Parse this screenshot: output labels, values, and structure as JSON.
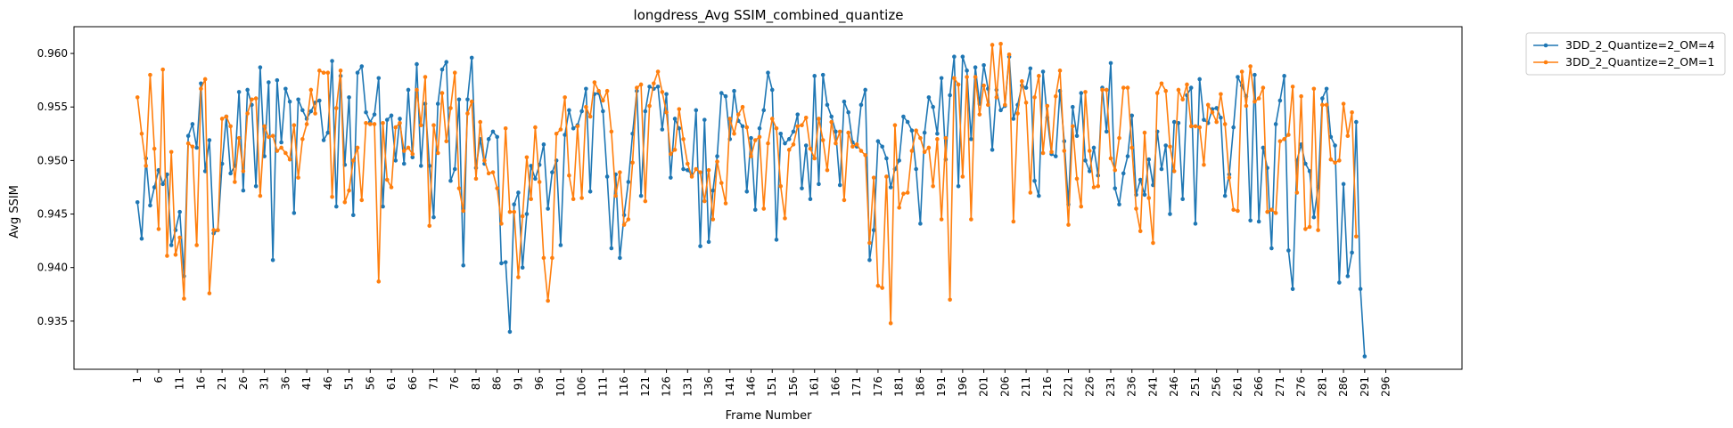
{
  "chart_data": {
    "type": "line",
    "title": "longdress_Avg SSIM_combined_quantize",
    "xlabel": "Frame Number",
    "ylabel": "Avg SSIM",
    "xlim": [
      -14,
      314
    ],
    "ylim": [
      0.9305,
      0.9625
    ],
    "x_ticks": [
      1,
      6,
      11,
      16,
      21,
      26,
      31,
      36,
      41,
      46,
      51,
      56,
      61,
      66,
      71,
      76,
      81,
      86,
      91,
      96,
      101,
      106,
      111,
      116,
      121,
      126,
      131,
      136,
      141,
      146,
      151,
      156,
      161,
      166,
      171,
      176,
      181,
      186,
      191,
      196,
      201,
      206,
      211,
      216,
      221,
      226,
      231,
      236,
      241,
      246,
      251,
      256,
      261,
      266,
      271,
      276,
      281,
      286,
      291,
      296
    ],
    "y_ticks": [
      0.935,
      0.94,
      0.945,
      0.95,
      0.955,
      0.96
    ],
    "y_tick_labels": [
      "0.935",
      "0.940",
      "0.945",
      "0.950",
      "0.955",
      "0.960"
    ],
    "grid": false,
    "legend_position": "outside-top-right",
    "x_start": 1,
    "series": [
      {
        "name": "3DD_2_Quantize=2_OM=4",
        "color": "#1f77b4",
        "values": [
          0.9461,
          0.9427,
          0.9502,
          0.9458,
          0.9475,
          0.9491,
          0.9478,
          0.9487,
          0.9421,
          0.9435,
          0.9452,
          0.9392,
          0.9523,
          0.9534,
          0.9512,
          0.9572,
          0.949,
          0.9519,
          0.9432,
          0.9435,
          0.9497,
          0.9541,
          0.9488,
          0.9495,
          0.9564,
          0.9472,
          0.9566,
          0.9552,
          0.9476,
          0.9587,
          0.9504,
          0.9573,
          0.9407,
          0.9575,
          0.9517,
          0.9567,
          0.9555,
          0.9451,
          0.9557,
          0.9547,
          0.9539,
          0.9546,
          0.9554,
          0.9556,
          0.9519,
          0.9526,
          0.9593,
          0.9457,
          0.9579,
          0.9496,
          0.9559,
          0.9449,
          0.9582,
          0.9588,
          0.9545,
          0.9536,
          0.9543,
          0.9577,
          0.9457,
          0.9538,
          0.9542,
          0.95,
          0.9539,
          0.9497,
          0.9566,
          0.9503,
          0.959,
          0.9495,
          0.9553,
          0.9495,
          0.9447,
          0.9553,
          0.9585,
          0.9592,
          0.9481,
          0.9492,
          0.9557,
          0.9402,
          0.9557,
          0.9596,
          0.9493,
          0.952,
          0.9497,
          0.952,
          0.9527,
          0.9522,
          0.9404,
          0.9405,
          0.934,
          0.9459,
          0.947,
          0.94,
          0.945,
          0.9495,
          0.9483,
          0.9496,
          0.9515,
          0.9455,
          0.9489,
          0.95,
          0.9421,
          0.9524,
          0.9547,
          0.953,
          0.9533,
          0.9546,
          0.9567,
          0.9471,
          0.9562,
          0.9563,
          0.9546,
          0.9485,
          0.9418,
          0.9487,
          0.9409,
          0.9449,
          0.948,
          0.9525,
          0.9565,
          0.9467,
          0.9546,
          0.9569,
          0.9567,
          0.9569,
          0.9529,
          0.9562,
          0.9484,
          0.9539,
          0.953,
          0.9492,
          0.9491,
          0.9487,
          0.9547,
          0.942,
          0.9538,
          0.9424,
          0.9472,
          0.9504,
          0.9563,
          0.956,
          0.952,
          0.9565,
          0.9537,
          0.9532,
          0.9471,
          0.9521,
          0.9454,
          0.953,
          0.9547,
          0.9582,
          0.9566,
          0.9426,
          0.9525,
          0.9516,
          0.952,
          0.9527,
          0.9543,
          0.9474,
          0.9514,
          0.9464,
          0.9579,
          0.9478,
          0.958,
          0.9552,
          0.9541,
          0.9527,
          0.9477,
          0.9555,
          0.9545,
          0.9517,
          0.9513,
          0.9552,
          0.9566,
          0.9407,
          0.9435,
          0.9518,
          0.9513,
          0.9502,
          0.9475,
          0.9492,
          0.95,
          0.9541,
          0.9536,
          0.9528,
          0.9492,
          0.9441,
          0.9526,
          0.9559,
          0.955,
          0.9525,
          0.9577,
          0.9501,
          0.9561,
          0.9597,
          0.9476,
          0.9597,
          0.9584,
          0.952,
          0.9587,
          0.9553,
          0.9589,
          0.9567,
          0.951,
          0.9566,
          0.9547,
          0.9551,
          0.9597,
          0.9539,
          0.9552,
          0.957,
          0.9568,
          0.9586,
          0.9481,
          0.9467,
          0.9583,
          0.954,
          0.9506,
          0.9504,
          0.9565,
          0.9518,
          0.9459,
          0.955,
          0.9523,
          0.9563,
          0.95,
          0.949,
          0.9512,
          0.9486,
          0.9568,
          0.9527,
          0.9591,
          0.9474,
          0.9459,
          0.9488,
          0.9504,
          0.9542,
          0.9468,
          0.9482,
          0.9468,
          0.9501,
          0.9477,
          0.9527,
          0.9492,
          0.9514,
          0.945,
          0.9536,
          0.9535,
          0.9464,
          0.9561,
          0.9568,
          0.9441,
          0.9576,
          0.9538,
          0.9535,
          0.9548,
          0.9549,
          0.954,
          0.9467,
          0.9487,
          0.9531,
          0.9578,
          0.957,
          0.956,
          0.9444,
          0.958,
          0.9443,
          0.9512,
          0.9493,
          0.9418,
          0.9534,
          0.9556,
          0.9579,
          0.9416,
          0.938,
          0.95,
          0.9515,
          0.9497,
          0.949,
          0.9447,
          0.9475,
          0.9558,
          0.9567,
          0.9522,
          0.9514,
          0.9386,
          0.9478,
          0.9392,
          0.9414,
          0.9536,
          0.938,
          0.9317
        ]
      },
      {
        "name": "3DD_2_Quantize=2_OM=1",
        "color": "#ff7f0e",
        "values": [
          0.9559,
          0.9525,
          0.9495,
          0.958,
          0.9511,
          0.9436,
          0.9585,
          0.9411,
          0.9508,
          0.9412,
          0.9428,
          0.9371,
          0.9516,
          0.9513,
          0.9421,
          0.9567,
          0.9576,
          0.9376,
          0.9435,
          0.9435,
          0.9539,
          0.9541,
          0.9532,
          0.948,
          0.9521,
          0.949,
          0.9544,
          0.9557,
          0.9558,
          0.9467,
          0.9532,
          0.9522,
          0.9523,
          0.9509,
          0.9512,
          0.9507,
          0.9501,
          0.9533,
          0.9484,
          0.952,
          0.9534,
          0.9566,
          0.9544,
          0.9584,
          0.9582,
          0.9582,
          0.9466,
          0.9549,
          0.9584,
          0.9461,
          0.9472,
          0.95,
          0.9512,
          0.9463,
          0.9535,
          0.9534,
          0.9534,
          0.9387,
          0.9535,
          0.9482,
          0.9475,
          0.9531,
          0.9535,
          0.9509,
          0.9512,
          0.9506,
          0.9566,
          0.9533,
          0.9578,
          0.9439,
          0.9533,
          0.9507,
          0.9563,
          0.9518,
          0.9549,
          0.9582,
          0.9474,
          0.9453,
          0.9544,
          0.9555,
          0.9483,
          0.9536,
          0.95,
          0.9488,
          0.9489,
          0.9474,
          0.9441,
          0.953,
          0.9452,
          0.9452,
          0.9391,
          0.9448,
          0.9503,
          0.9464,
          0.9531,
          0.948,
          0.9409,
          0.9369,
          0.9409,
          0.9525,
          0.9529,
          0.9559,
          0.9486,
          0.9464,
          0.9532,
          0.9465,
          0.955,
          0.9541,
          0.9573,
          0.9565,
          0.9556,
          0.9565,
          0.9527,
          0.9467,
          0.9489,
          0.944,
          0.9445,
          0.9498,
          0.9568,
          0.9571,
          0.9462,
          0.9551,
          0.9572,
          0.9583,
          0.9564,
          0.9545,
          0.9506,
          0.951,
          0.9548,
          0.952,
          0.9497,
          0.9485,
          0.9492,
          0.9489,
          0.9462,
          0.9491,
          0.9445,
          0.9499,
          0.9479,
          0.946,
          0.9539,
          0.9525,
          0.9543,
          0.955,
          0.9531,
          0.9504,
          0.9519,
          0.9522,
          0.9455,
          0.9516,
          0.9539,
          0.953,
          0.9476,
          0.9446,
          0.951,
          0.9515,
          0.9532,
          0.9533,
          0.954,
          0.9511,
          0.9502,
          0.9539,
          0.9519,
          0.9491,
          0.9536,
          0.9516,
          0.9527,
          0.9463,
          0.9526,
          0.9513,
          0.9515,
          0.9509,
          0.9505,
          0.9423,
          0.9484,
          0.9383,
          0.9381,
          0.9485,
          0.9348,
          0.9533,
          0.9456,
          0.9469,
          0.947,
          0.9509,
          0.9528,
          0.9521,
          0.9508,
          0.9512,
          0.9476,
          0.952,
          0.9445,
          0.9521,
          0.937,
          0.9577,
          0.9571,
          0.9485,
          0.9578,
          0.9445,
          0.9578,
          0.9543,
          0.957,
          0.9552,
          0.9608,
          0.9559,
          0.9609,
          0.9552,
          0.9599,
          0.9443,
          0.9544,
          0.9574,
          0.9554,
          0.947,
          0.9559,
          0.9579,
          0.9507,
          0.9551,
          0.9508,
          0.956,
          0.9584,
          0.9509,
          0.944,
          0.9532,
          0.9483,
          0.9457,
          0.9564,
          0.9509,
          0.9475,
          0.9476,
          0.9566,
          0.9566,
          0.9502,
          0.9491,
          0.9521,
          0.9568,
          0.9568,
          0.9512,
          0.9455,
          0.9434,
          0.9526,
          0.9465,
          0.9423,
          0.9563,
          0.9572,
          0.9565,
          0.9513,
          0.949,
          0.9566,
          0.9557,
          0.9571,
          0.9532,
          0.9532,
          0.9531,
          0.9496,
          0.9552,
          0.9545,
          0.9536,
          0.9562,
          0.9534,
          0.9484,
          0.9454,
          0.9453,
          0.9583,
          0.9551,
          0.9588,
          0.9555,
          0.9558,
          0.9568,
          0.9452,
          0.9454,
          0.9451,
          0.9518,
          0.952,
          0.9524,
          0.9569,
          0.947,
          0.956,
          0.9436,
          0.9438,
          0.9567,
          0.9435,
          0.9552,
          0.9552,
          0.9501,
          0.9498,
          0.95,
          0.9553,
          0.9523,
          0.9545,
          0.9429
        ]
      }
    ]
  }
}
